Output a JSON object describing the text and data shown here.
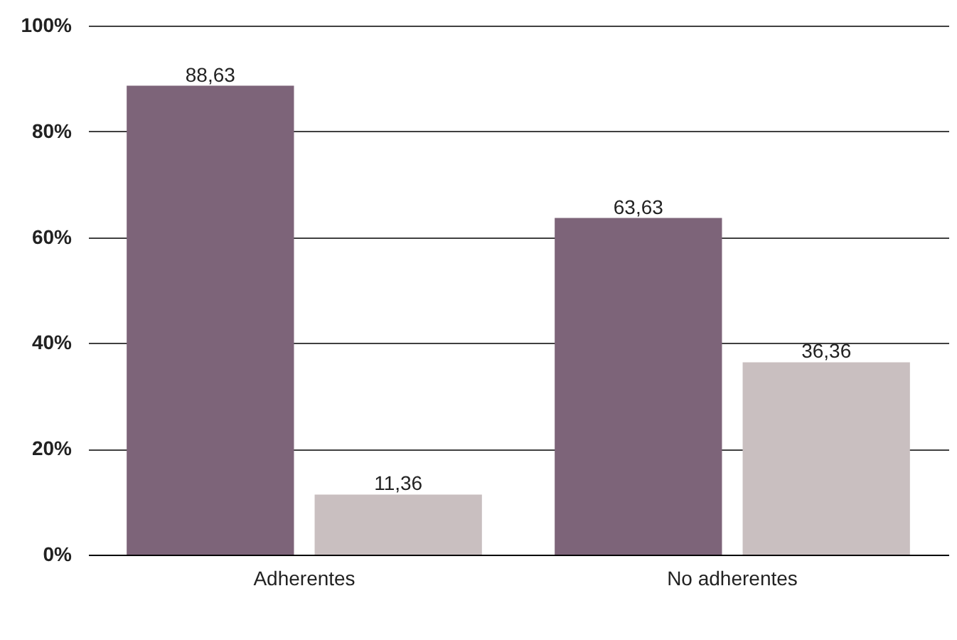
{
  "chart_data": {
    "type": "bar",
    "categories": [
      "Adherentes",
      "No adherentes"
    ],
    "series": [
      {
        "color": "#7d6479",
        "values": [
          88.63,
          63.63
        ],
        "value_labels": [
          "88,63",
          "63,63"
        ]
      },
      {
        "color": "#c9bfc0",
        "values": [
          11.36,
          36.36
        ],
        "value_labels": [
          "11,36",
          "36,36"
        ]
      }
    ],
    "ylim": [
      0,
      100
    ],
    "yticks": [
      {
        "value": 0,
        "label": "0%"
      },
      {
        "value": 20,
        "label": "20%"
      },
      {
        "value": 40,
        "label": "40%"
      },
      {
        "value": 60,
        "label": "60%"
      },
      {
        "value": 80,
        "label": "80%"
      },
      {
        "value": 100,
        "label": "100%"
      }
    ],
    "grid": "y",
    "legend": false
  }
}
